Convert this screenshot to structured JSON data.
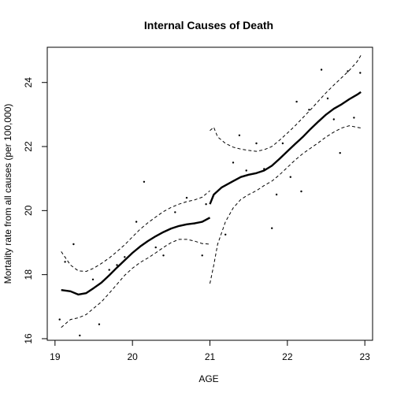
{
  "chart_data": {
    "type": "scatter",
    "title": "Internal Causes of Death",
    "xlabel": "AGE",
    "ylabel": "Mortality rate from all causes (per 100,000)",
    "xlim": [
      18.9,
      23.1
    ],
    "ylim": [
      15.95,
      25.1
    ],
    "x_ticks": [
      19,
      20,
      21,
      22,
      23
    ],
    "y_ticks": [
      16,
      18,
      20,
      22,
      24
    ],
    "grid": false,
    "points": [
      [
        19.06,
        16.6
      ],
      [
        19.13,
        18.4
      ],
      [
        19.24,
        18.95
      ],
      [
        19.32,
        16.1
      ],
      [
        19.49,
        17.85
      ],
      [
        19.57,
        16.45
      ],
      [
        19.7,
        18.15
      ],
      [
        19.8,
        18.3
      ],
      [
        19.9,
        18.55
      ],
      [
        20.05,
        19.65
      ],
      [
        20.15,
        20.9
      ],
      [
        20.3,
        18.85
      ],
      [
        20.4,
        18.6
      ],
      [
        20.55,
        19.95
      ],
      [
        20.7,
        20.4
      ],
      [
        20.8,
        19.6
      ],
      [
        20.9,
        18.6
      ],
      [
        20.95,
        20.2
      ],
      [
        21.2,
        19.25
      ],
      [
        21.3,
        21.5
      ],
      [
        21.38,
        22.35
      ],
      [
        21.47,
        21.25
      ],
      [
        21.6,
        22.1
      ],
      [
        21.7,
        21.3
      ],
      [
        21.8,
        19.45
      ],
      [
        21.86,
        20.5
      ],
      [
        21.94,
        22.1
      ],
      [
        22.04,
        21.05
      ],
      [
        22.12,
        23.4
      ],
      [
        22.18,
        20.6
      ],
      [
        22.28,
        23.15
      ],
      [
        22.44,
        24.4
      ],
      [
        22.52,
        23.5
      ],
      [
        22.6,
        22.85
      ],
      [
        22.68,
        21.8
      ],
      [
        22.78,
        24.35
      ],
      [
        22.86,
        22.9
      ],
      [
        22.94,
        24.3
      ]
    ],
    "series": [
      {
        "style": "solid",
        "segments": [
          [
            [
              19.08,
              17.52
            ],
            [
              19.2,
              17.48
            ],
            [
              19.3,
              17.38
            ],
            [
              19.4,
              17.42
            ],
            [
              19.5,
              17.58
            ],
            [
              19.6,
              17.75
            ],
            [
              19.7,
              17.98
            ],
            [
              19.8,
              18.22
            ],
            [
              19.9,
              18.45
            ],
            [
              20.0,
              18.68
            ],
            [
              20.1,
              18.88
            ],
            [
              20.2,
              19.05
            ],
            [
              20.3,
              19.2
            ],
            [
              20.4,
              19.33
            ],
            [
              20.5,
              19.44
            ],
            [
              20.6,
              19.52
            ],
            [
              20.7,
              19.57
            ],
            [
              20.8,
              19.6
            ],
            [
              20.9,
              19.65
            ],
            [
              21.0,
              19.78
            ]
          ],
          [
            [
              21.0,
              20.2
            ],
            [
              21.05,
              20.5
            ],
            [
              21.15,
              20.72
            ],
            [
              21.3,
              20.92
            ],
            [
              21.4,
              21.05
            ],
            [
              21.5,
              21.12
            ],
            [
              21.6,
              21.17
            ],
            [
              21.7,
              21.25
            ],
            [
              21.8,
              21.4
            ],
            [
              21.9,
              21.62
            ],
            [
              22.0,
              21.85
            ],
            [
              22.1,
              22.08
            ],
            [
              22.2,
              22.3
            ],
            [
              22.3,
              22.55
            ],
            [
              22.4,
              22.78
            ],
            [
              22.5,
              23.0
            ],
            [
              22.6,
              23.18
            ],
            [
              22.7,
              23.32
            ],
            [
              22.8,
              23.48
            ],
            [
              22.9,
              23.62
            ],
            [
              22.95,
              23.7
            ]
          ]
        ]
      },
      {
        "style": "dashed",
        "segments": [
          [
            [
              19.08,
              18.72
            ],
            [
              19.2,
              18.3
            ],
            [
              19.3,
              18.12
            ],
            [
              19.4,
              18.1
            ],
            [
              19.5,
              18.2
            ],
            [
              19.6,
              18.35
            ],
            [
              19.7,
              18.52
            ],
            [
              19.8,
              18.72
            ],
            [
              19.9,
              18.93
            ],
            [
              20.0,
              19.18
            ],
            [
              20.1,
              19.42
            ],
            [
              20.2,
              19.62
            ],
            [
              20.3,
              19.8
            ],
            [
              20.4,
              19.97
            ],
            [
              20.5,
              20.1
            ],
            [
              20.6,
              20.2
            ],
            [
              20.7,
              20.28
            ],
            [
              20.8,
              20.33
            ],
            [
              20.9,
              20.42
            ],
            [
              21.0,
              20.62
            ]
          ],
          [
            [
              19.08,
              16.35
            ],
            [
              19.2,
              16.6
            ],
            [
              19.3,
              16.65
            ],
            [
              19.4,
              16.75
            ],
            [
              19.5,
              16.95
            ],
            [
              19.6,
              17.15
            ],
            [
              19.7,
              17.42
            ],
            [
              19.8,
              17.7
            ],
            [
              19.9,
              17.98
            ],
            [
              20.0,
              18.2
            ],
            [
              20.1,
              18.38
            ],
            [
              20.2,
              18.52
            ],
            [
              20.3,
              18.68
            ],
            [
              20.4,
              18.85
            ],
            [
              20.5,
              19.0
            ],
            [
              20.6,
              19.1
            ],
            [
              20.7,
              19.1
            ],
            [
              20.8,
              19.05
            ],
            [
              20.9,
              18.97
            ],
            [
              21.0,
              18.95
            ]
          ],
          [
            [
              21.0,
              22.5
            ],
            [
              21.05,
              22.6
            ],
            [
              21.1,
              22.3
            ],
            [
              21.2,
              22.1
            ],
            [
              21.3,
              21.98
            ],
            [
              21.4,
              21.92
            ],
            [
              21.5,
              21.88
            ],
            [
              21.6,
              21.85
            ],
            [
              21.7,
              21.9
            ],
            [
              21.8,
              22.0
            ],
            [
              21.9,
              22.2
            ],
            [
              22.0,
              22.42
            ],
            [
              22.1,
              22.65
            ],
            [
              22.2,
              22.9
            ],
            [
              22.3,
              23.15
            ],
            [
              22.4,
              23.42
            ],
            [
              22.5,
              23.68
            ],
            [
              22.6,
              23.92
            ],
            [
              22.7,
              24.15
            ],
            [
              22.8,
              24.38
            ],
            [
              22.9,
              24.65
            ],
            [
              22.95,
              24.85
            ]
          ],
          [
            [
              21.0,
              17.72
            ],
            [
              21.05,
              18.3
            ],
            [
              21.1,
              18.95
            ],
            [
              21.2,
              19.65
            ],
            [
              21.3,
              20.08
            ],
            [
              21.4,
              20.35
            ],
            [
              21.5,
              20.5
            ],
            [
              21.6,
              20.62
            ],
            [
              21.7,
              20.78
            ],
            [
              21.8,
              20.92
            ],
            [
              21.9,
              21.12
            ],
            [
              22.0,
              21.35
            ],
            [
              22.1,
              21.58
            ],
            [
              22.2,
              21.78
            ],
            [
              22.3,
              21.95
            ],
            [
              22.4,
              22.12
            ],
            [
              22.5,
              22.3
            ],
            [
              22.6,
              22.45
            ],
            [
              22.7,
              22.58
            ],
            [
              22.8,
              22.65
            ],
            [
              22.9,
              22.6
            ],
            [
              22.95,
              22.58
            ]
          ]
        ]
      }
    ]
  }
}
